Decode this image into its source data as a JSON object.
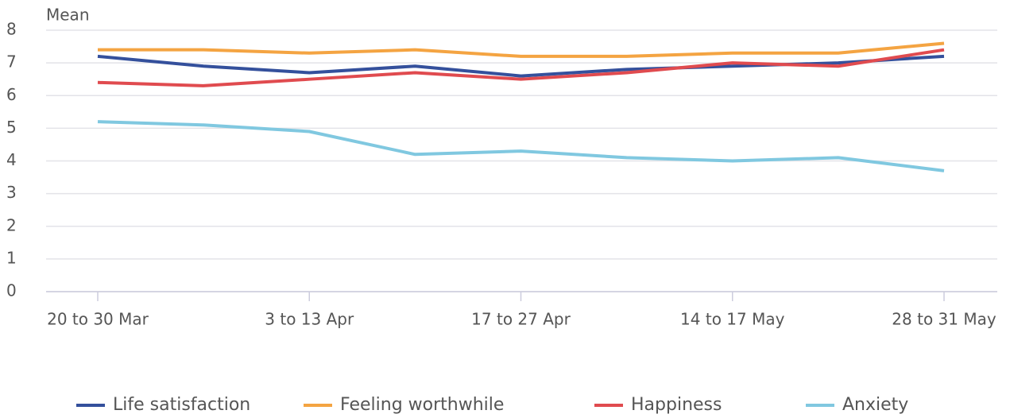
{
  "chart_data": {
    "type": "line",
    "ylabel": "Mean",
    "categories": [
      "20 to 30 Mar",
      null,
      "3 to 13 Apr",
      null,
      "17 to 27 Apr",
      null,
      "14 to 17 May",
      null,
      "28 to 31 May"
    ],
    "series": [
      {
        "name": "Life satisfaction",
        "color": "#34509c",
        "values": [
          7.2,
          6.9,
          6.7,
          6.9,
          6.6,
          6.8,
          6.9,
          7.0,
          7.2
        ]
      },
      {
        "name": "Feeling worthwhile",
        "color": "#f4a442",
        "values": [
          7.4,
          7.4,
          7.3,
          7.4,
          7.2,
          7.2,
          7.3,
          7.3,
          7.6
        ]
      },
      {
        "name": "Happiness",
        "color": "#e04b4f",
        "values": [
          6.4,
          6.3,
          6.5,
          6.7,
          6.5,
          6.7,
          7.0,
          6.9,
          7.4
        ]
      },
      {
        "name": "Anxiety",
        "color": "#80c8e0",
        "values": [
          5.2,
          5.1,
          4.9,
          4.2,
          4.3,
          4.1,
          4.0,
          4.1,
          3.7
        ]
      }
    ],
    "ylim": [
      0,
      8
    ],
    "yticks": [
      0,
      1,
      2,
      3,
      4,
      5,
      6,
      7,
      8
    ],
    "grid": true,
    "legend": "bottom"
  }
}
